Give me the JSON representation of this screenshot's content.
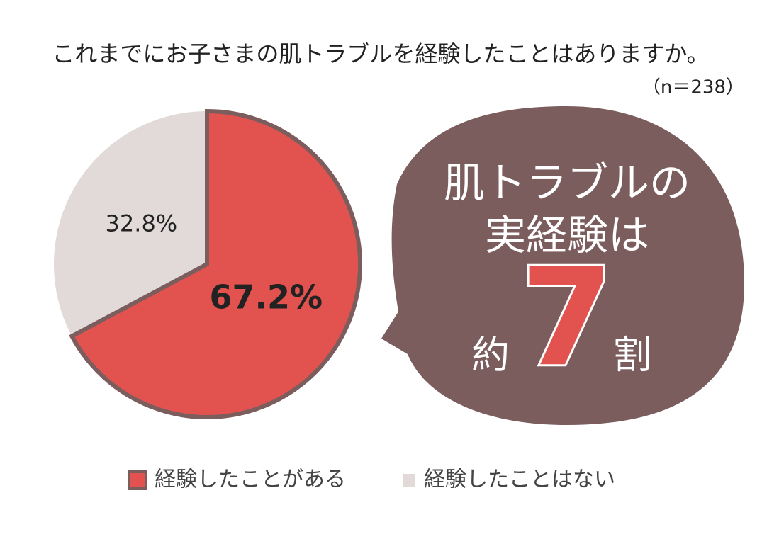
{
  "chart_data": {
    "type": "pie",
    "title": "これまでにお子さまの肌トラブルを経験したことはありますか。",
    "subtitle": "（n＝238）",
    "categories": [
      "経験したことがある",
      "経験したことはない"
    ],
    "values": [
      67.2,
      32.8
    ],
    "value_labels": [
      "67.2%",
      "32.8%"
    ],
    "colors": [
      "#e2534f",
      "#e2d9d9"
    ],
    "legend": "bottom",
    "annotation": {
      "lines": [
        "肌トラブルの",
        "実経験は"
      ],
      "prefix": "約",
      "number": 7,
      "suffix": "割"
    }
  }
}
